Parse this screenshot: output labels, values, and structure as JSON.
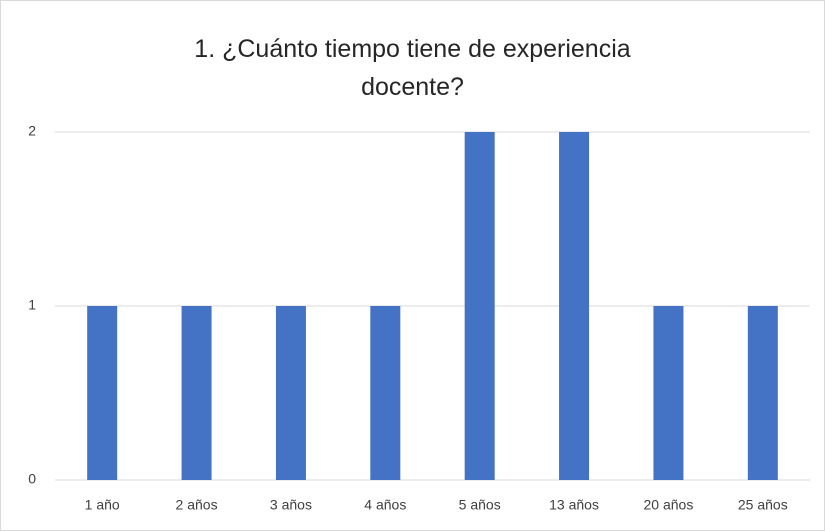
{
  "chart_data": {
    "type": "bar",
    "title": "1. ¿Cuánto tiempo tiene de experiencia docente?",
    "categories": [
      "1 año",
      "2 años",
      "3 años",
      "4 años",
      "5 años",
      "13 años",
      "20 años",
      "25 años"
    ],
    "values": [
      1,
      1,
      1,
      1,
      2,
      2,
      1,
      1
    ],
    "color": "#4472c4",
    "ylim": [
      0,
      2
    ],
    "yticks": [
      0,
      1,
      2
    ],
    "grid": true
  }
}
